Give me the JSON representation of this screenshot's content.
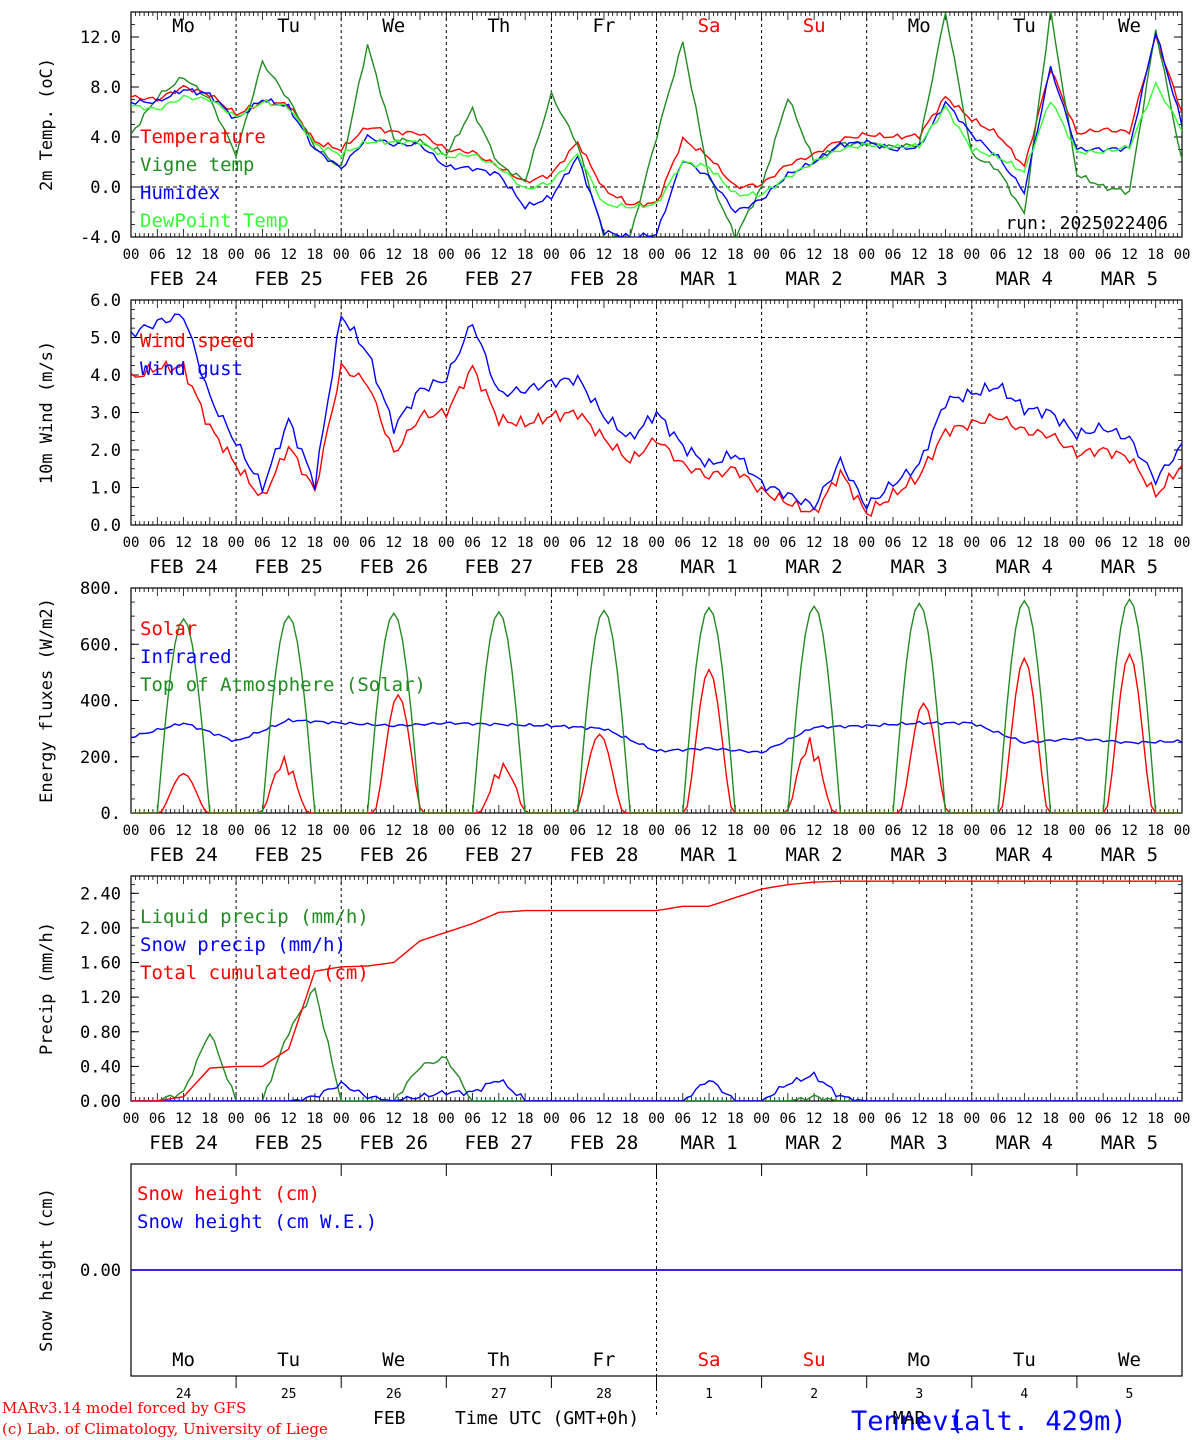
{
  "run_label": "run: 2025022406",
  "footer": {
    "model": "MARv3.14 model forced by GFS",
    "lab": "(c) Lab. of Climatology, University of Liege",
    "month": "FEB",
    "axis": "Time UTC (GMT+0h)",
    "location": "Tennevi",
    "location_overlap": "MAR",
    "location_rest": "e (alt. 429m)"
  },
  "colors": {
    "red": "#ff0000",
    "green": "#228b22",
    "blue": "#0000ff",
    "lime": "#33ff33"
  },
  "days": [
    {
      "abbr": "Mo",
      "num": "24",
      "date": "FEB 24",
      "weekend": false
    },
    {
      "abbr": "Tu",
      "num": "25",
      "date": "FEB 25",
      "weekend": false
    },
    {
      "abbr": "We",
      "num": "26",
      "date": "FEB 26",
      "weekend": false
    },
    {
      "abbr": "Th",
      "num": "27",
      "date": "FEB 27",
      "weekend": false
    },
    {
      "abbr": "Fr",
      "num": "28",
      "date": "FEB 28",
      "weekend": false
    },
    {
      "abbr": "Sa",
      "num": "1",
      "date": "MAR  1",
      "weekend": true
    },
    {
      "abbr": "Su",
      "num": "2",
      "date": "MAR  2",
      "weekend": true
    },
    {
      "abbr": "Mo",
      "num": "3",
      "date": "MAR  3",
      "weekend": false
    },
    {
      "abbr": "Tu",
      "num": "4",
      "date": "MAR  4",
      "weekend": false
    },
    {
      "abbr": "We",
      "num": "5",
      "date": "MAR  5",
      "weekend": false
    }
  ],
  "hour_labels": [
    "00",
    "06",
    "12",
    "18"
  ],
  "chart_data": [
    {
      "type": "line",
      "ylabel": "2m Temp. (oC)",
      "ylim": [
        -4,
        14
      ],
      "ticks": [
        "-4.0",
        "0.0",
        "4.0",
        "8.0",
        "12.0"
      ],
      "tick_values": [
        -4,
        0,
        4,
        8,
        12
      ],
      "dashed": [
        0
      ],
      "hours": [
        0,
        6,
        12,
        18,
        24,
        30,
        36,
        42,
        48,
        54,
        60,
        66,
        72,
        78,
        84,
        90,
        96,
        102,
        108,
        114,
        120,
        126,
        132,
        138,
        144,
        150,
        156,
        162,
        168,
        174,
        180,
        186,
        192,
        198,
        204,
        210,
        216,
        222,
        228,
        234,
        240
      ],
      "series": [
        {
          "name": "Temperature",
          "color": "red",
          "values": [
            7.2,
            7.0,
            8.0,
            7.4,
            5.8,
            6.8,
            6.6,
            3.6,
            3.0,
            4.8,
            4.4,
            4.3,
            3.0,
            2.8,
            1.6,
            0.4,
            1.0,
            3.6,
            -0.2,
            -1.4,
            -1.3,
            3.8,
            2.4,
            0.0,
            0.2,
            1.8,
            2.6,
            3.8,
            4.2,
            4.0,
            4.1,
            7.2,
            5.4,
            4.2,
            1.6,
            9.5,
            4.3,
            4.6,
            4.4,
            12.0,
            6.0
          ]
        },
        {
          "name": "Vigne temp",
          "color": "green",
          "values": [
            4.2,
            7.2,
            8.8,
            7.0,
            2.6,
            10.0,
            7.0,
            3.2,
            1.5,
            11.4,
            3.8,
            3.6,
            2.6,
            6.2,
            1.8,
            0.5,
            7.4,
            3.4,
            -4.0,
            -4.0,
            4.0,
            11.6,
            0.8,
            -4.0,
            0.0,
            7.2,
            2.0,
            3.4,
            3.5,
            3.2,
            3.4,
            14.0,
            2.6,
            1.4,
            -2.2,
            14.0,
            1.0,
            0.0,
            -0.4,
            12.6,
            2.0
          ]
        },
        {
          "name": "Humidex",
          "color": "blue",
          "values": [
            6.8,
            6.8,
            7.8,
            7.4,
            5.4,
            7.0,
            6.4,
            3.0,
            1.5,
            4.0,
            3.4,
            3.4,
            1.6,
            1.5,
            1.0,
            -1.6,
            -0.8,
            2.4,
            -3.6,
            -4.0,
            -3.8,
            2.2,
            0.8,
            -2.0,
            -1.0,
            1.0,
            2.0,
            3.4,
            3.6,
            3.0,
            3.2,
            6.8,
            4.2,
            2.4,
            -0.4,
            9.6,
            3.0,
            3.0,
            3.1,
            12.4,
            5.0
          ]
        },
        {
          "name": "DewPoint Temp",
          "color": "lime",
          "values": [
            6.5,
            6.2,
            7.2,
            7.0,
            5.6,
            6.8,
            6.4,
            3.4,
            2.6,
            3.6,
            3.6,
            3.6,
            2.4,
            2.6,
            1.6,
            -0.2,
            0.4,
            2.6,
            -1.4,
            -1.6,
            -1.4,
            2.0,
            1.6,
            -0.6,
            -0.6,
            0.8,
            2.0,
            3.0,
            3.4,
            3.2,
            3.3,
            6.4,
            3.0,
            2.4,
            1.2,
            7.0,
            2.8,
            2.8,
            3.2,
            8.2,
            4.6
          ]
        }
      ],
      "legend_placement": "top-left"
    },
    {
      "type": "line",
      "ylabel": "10m Wind (m/s)",
      "ylim": [
        0,
        6
      ],
      "ticks": [
        "0.0",
        "1.0",
        "2.0",
        "3.0",
        "4.0",
        "5.0",
        "6.0"
      ],
      "tick_values": [
        0,
        1,
        2,
        3,
        4,
        5,
        6
      ],
      "dashed": [
        5
      ],
      "hours": [
        0,
        6,
        12,
        18,
        24,
        30,
        36,
        42,
        48,
        54,
        60,
        66,
        72,
        78,
        84,
        90,
        96,
        102,
        108,
        114,
        120,
        126,
        132,
        138,
        144,
        150,
        156,
        162,
        168,
        174,
        180,
        186,
        192,
        198,
        204,
        210,
        216,
        222,
        228,
        234,
        240
      ],
      "series": [
        {
          "name": "Wind speed",
          "color": "red",
          "values": [
            3.9,
            4.2,
            4.2,
            2.6,
            1.6,
            0.7,
            2.1,
            0.9,
            4.2,
            3.8,
            1.9,
            2.9,
            3.0,
            4.2,
            2.8,
            2.7,
            2.9,
            3.0,
            2.3,
            1.7,
            2.3,
            1.6,
            1.3,
            1.5,
            0.9,
            0.6,
            0.3,
            1.4,
            0.3,
            0.8,
            1.3,
            2.5,
            2.7,
            2.9,
            2.5,
            2.4,
            1.9,
            2.0,
            1.8,
            0.8,
            1.6
          ]
        },
        {
          "name": "Wind gust",
          "color": "blue",
          "values": [
            5.1,
            5.4,
            5.6,
            3.4,
            2.2,
            1.0,
            2.8,
            1.1,
            5.6,
            4.6,
            2.6,
            3.6,
            3.9,
            5.4,
            3.5,
            3.6,
            3.8,
            3.9,
            2.9,
            2.3,
            3.0,
            2.1,
            1.6,
            1.9,
            1.1,
            0.8,
            0.5,
            1.7,
            0.5,
            1.1,
            1.6,
            3.3,
            3.5,
            3.7,
            3.1,
            3.0,
            2.4,
            2.6,
            2.3,
            1.2,
            2.1
          ]
        }
      ],
      "legend_placement": "top-left"
    },
    {
      "type": "line",
      "ylabel": "Energy fluxes (W/m2)",
      "ylim": [
        0,
        800
      ],
      "ticks": [
        "0.",
        "200.",
        "400.",
        "600.",
        "800."
      ],
      "tick_values": [
        0,
        200,
        400,
        600,
        800
      ],
      "dashed": [],
      "series": [
        {
          "name": "Solar",
          "color": "red",
          "peaks": [
            {
              "day": 0,
              "hour": 12,
              "value": 140
            },
            {
              "day": 1,
              "hour": 11,
              "value": 200
            },
            {
              "day": 2,
              "hour": 13,
              "value": 420
            },
            {
              "day": 3,
              "hour": 13,
              "value": 180
            },
            {
              "day": 4,
              "hour": 11,
              "value": 280
            },
            {
              "day": 5,
              "hour": 12,
              "value": 510
            },
            {
              "day": 6,
              "hour": 11,
              "value": 270
            },
            {
              "day": 7,
              "hour": 13,
              "value": 390
            },
            {
              "day": 8,
              "hour": 12,
              "value": 550
            },
            {
              "day": 9,
              "hour": 12,
              "value": 565
            }
          ]
        },
        {
          "name": "Infrared",
          "color": "blue",
          "hours": [
            0,
            12,
            24,
            36,
            48,
            60,
            72,
            84,
            96,
            108,
            120,
            132,
            144,
            156,
            168,
            180,
            192,
            204,
            216,
            228,
            240
          ],
          "values": [
            270,
            320,
            255,
            330,
            320,
            310,
            320,
            315,
            310,
            300,
            220,
            230,
            215,
            305,
            310,
            320,
            320,
            250,
            265,
            250,
            255
          ]
        },
        {
          "name": "Top of Atmosphere (Solar)",
          "color": "green",
          "peaks": [
            {
              "day": 0,
              "value": 690
            },
            {
              "day": 1,
              "value": 700
            },
            {
              "day": 2,
              "value": 710
            },
            {
              "day": 3,
              "value": 715
            },
            {
              "day": 4,
              "value": 720
            },
            {
              "day": 5,
              "value": 730
            },
            {
              "day": 6,
              "value": 735
            },
            {
              "day": 7,
              "value": 745
            },
            {
              "day": 8,
              "value": 755
            },
            {
              "day": 9,
              "value": 760
            }
          ]
        }
      ],
      "legend_placement": "top-left"
    },
    {
      "type": "line",
      "ylabel": "Precip (mm/h)",
      "ylim": [
        0,
        2.6
      ],
      "ticks": [
        "0.00",
        "0.40",
        "0.80",
        "1.20",
        "1.60",
        "2.00",
        "2.40"
      ],
      "tick_values": [
        0,
        0.4,
        0.8,
        1.2,
        1.6,
        2.0,
        2.4
      ],
      "dashed": [],
      "hours": [
        0,
        6,
        12,
        18,
        24,
        30,
        36,
        42,
        48,
        54,
        60,
        66,
        72,
        78,
        84,
        90,
        96,
        102,
        108,
        114,
        120,
        126,
        132,
        138,
        144,
        150,
        156,
        162,
        168,
        174,
        180,
        186,
        192,
        198,
        204,
        210,
        216,
        222,
        228,
        234,
        240
      ],
      "series": [
        {
          "name": "Liquid precip (mm/h)",
          "color": "green",
          "values": [
            0,
            0,
            0.1,
            0.8,
            0,
            0,
            0.8,
            1.3,
            0,
            0,
            0,
            0.4,
            0.5,
            0,
            0,
            0,
            0,
            0,
            0,
            0,
            0,
            0,
            0,
            0,
            0,
            0,
            0.05,
            0,
            0,
            0,
            0,
            0,
            0,
            0,
            0,
            0,
            0,
            0,
            0,
            0,
            0
          ]
        },
        {
          "name": "Snow precip (mm/h)",
          "color": "blue",
          "values": [
            0,
            0,
            0,
            0,
            0,
            0,
            0,
            0.05,
            0.2,
            0.05,
            0,
            0.05,
            0.1,
            0.1,
            0.25,
            0,
            0,
            0,
            0,
            0,
            0,
            0,
            0.25,
            0,
            0,
            0.2,
            0.3,
            0.05,
            0,
            0,
            0,
            0,
            0,
            0,
            0,
            0,
            0,
            0,
            0,
            0,
            0
          ]
        },
        {
          "name": "Total cumulated (cm)",
          "color": "red",
          "values": [
            0,
            0,
            0.05,
            0.38,
            0.4,
            0.4,
            0.6,
            1.5,
            1.55,
            1.56,
            1.6,
            1.85,
            1.95,
            2.05,
            2.18,
            2.2,
            2.2,
            2.2,
            2.2,
            2.2,
            2.2,
            2.25,
            2.25,
            2.35,
            2.45,
            2.5,
            2.53,
            2.54,
            2.54,
            2.54,
            2.54,
            2.54,
            2.54,
            2.54,
            2.54,
            2.54,
            2.54,
            2.54,
            2.54,
            2.54,
            2.54
          ]
        }
      ],
      "legend_placement": "top-left"
    },
    {
      "type": "line",
      "ylabel": "Snow height (cm)",
      "ylim": [
        -1,
        1
      ],
      "ticks": [
        "0.00"
      ],
      "tick_values": [
        0
      ],
      "dashed": [],
      "series": [
        {
          "name": "Snow height (cm)",
          "color": "red",
          "hours": [
            0,
            240
          ],
          "values": [
            0,
            0
          ]
        },
        {
          "name": "Snow height (cm W.E.)",
          "color": "blue",
          "hours": [
            0,
            240
          ],
          "values": [
            0,
            0
          ]
        }
      ],
      "legend_placement": "top-left"
    }
  ]
}
